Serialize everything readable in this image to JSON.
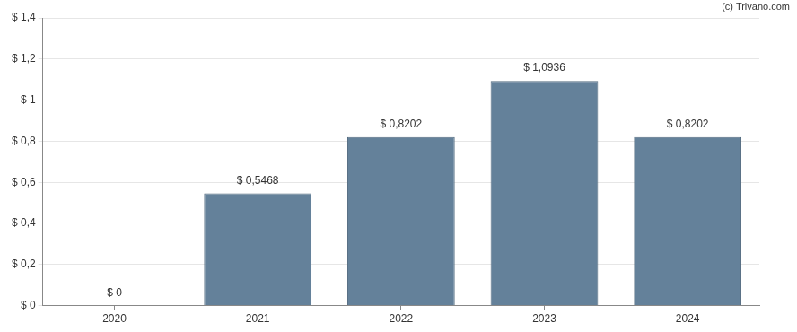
{
  "chart_data": {
    "type": "bar",
    "annotations": [
      "(c) Trivano.com"
    ],
    "categories": [
      "2020",
      "2021",
      "2022",
      "2023",
      "2024"
    ],
    "values": [
      0,
      0.5468,
      0.8202,
      1.0936,
      0.8202
    ],
    "value_labels": [
      "$ 0",
      "$ 0,5468",
      "$ 0,8202",
      "$ 1,0936",
      "$ 0,8202"
    ],
    "data_labels": true,
    "color": "#64819a",
    "ylim": [
      0,
      1.4
    ],
    "yticks": [
      {
        "value": 0,
        "label": "$ 0"
      },
      {
        "value": 0.2,
        "label": "$ 0,2"
      },
      {
        "value": 0.4,
        "label": "$ 0,4"
      },
      {
        "value": 0.6,
        "label": "$ 0,6"
      },
      {
        "value": 0.8,
        "label": "$ 0,8"
      },
      {
        "value": 1,
        "label": "$ 1"
      },
      {
        "value": 1.2,
        "label": "$ 1,2"
      },
      {
        "value": 1.4,
        "label": "$ 1,4"
      }
    ],
    "grid": true
  }
}
